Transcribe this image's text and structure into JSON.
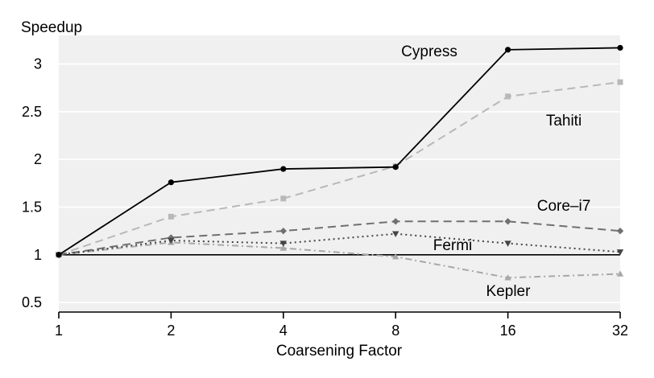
{
  "chart_data": {
    "type": "line",
    "title": "",
    "xlabel": "Coarsening Factor",
    "ylabel": "Speedup",
    "x": [
      "1",
      "2",
      "4",
      "8",
      "16",
      "32"
    ],
    "ylim": [
      0.4,
      3.3
    ],
    "yticks": [
      "0.5",
      "1",
      "1.5",
      "2",
      "2.5",
      "3"
    ],
    "grid": true,
    "legend": "inline labels",
    "background": "#f0f0f0",
    "series": [
      {
        "name": "Cypress",
        "values": [
          1.0,
          1.76,
          1.9,
          1.92,
          3.15,
          3.17
        ],
        "color": "#000000",
        "dash": "solid",
        "marker": "circle"
      },
      {
        "name": "Tahiti",
        "values": [
          1.0,
          1.4,
          1.59,
          1.93,
          2.66,
          2.81
        ],
        "color": "#b8b8b8",
        "dash": "dashed",
        "marker": "square"
      },
      {
        "name": "Core–i7",
        "values": [
          1.0,
          1.18,
          1.25,
          1.35,
          1.35,
          1.25
        ],
        "color": "#707070",
        "dash": "dashed",
        "marker": "diamond"
      },
      {
        "name": "Fermi",
        "values": [
          1.0,
          1.15,
          1.12,
          1.22,
          1.12,
          1.03
        ],
        "color": "#444444",
        "dash": "dotted",
        "marker": "triangle-down"
      },
      {
        "name": "Kepler",
        "values": [
          1.0,
          1.13,
          1.07,
          0.98,
          0.76,
          0.8
        ],
        "color": "#a8a8a8",
        "dash": "dash-dot",
        "marker": "triangle-up"
      }
    ],
    "reference_line": 1
  }
}
